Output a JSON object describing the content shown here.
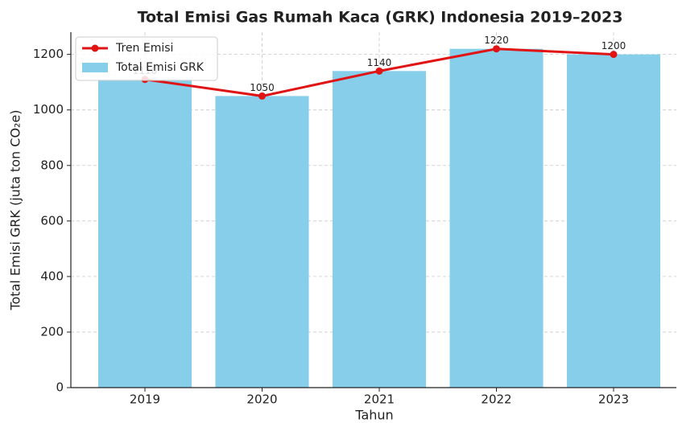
{
  "chart_data": {
    "type": "bar",
    "title": "Total Emisi Gas Rumah Kaca (GRK) Indonesia 2019–2023",
    "x_label": "Tahun",
    "y_label": "Total Emisi GRK (juta ton CO₂e)",
    "categories": [
      "2019",
      "2020",
      "2021",
      "2022",
      "2023"
    ],
    "series": [
      {
        "name": "Total Emisi GRK",
        "type": "bar",
        "color": "#87ceeb",
        "values": [
          1110,
          1050,
          1140,
          1220,
          1200
        ]
      },
      {
        "name": "Tren Emisi",
        "type": "line",
        "color": "#e01414",
        "values": [
          1110,
          1050,
          1140,
          1220,
          1200
        ]
      }
    ],
    "ylim": [
      0,
      1280
    ],
    "yticks": [
      0,
      200,
      400,
      600,
      800,
      1000,
      1200
    ],
    "grid": true,
    "legend": "upper left"
  }
}
